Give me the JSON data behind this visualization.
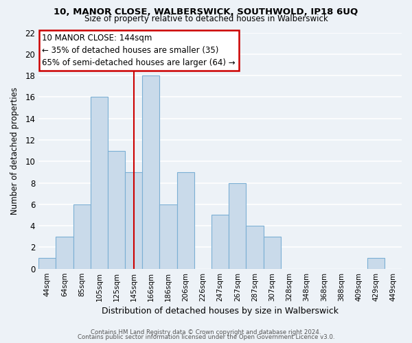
{
  "title": "10, MANOR CLOSE, WALBERSWICK, SOUTHWOLD, IP18 6UQ",
  "subtitle": "Size of property relative to detached houses in Walberswick",
  "xlabel": "Distribution of detached houses by size in Walberswick",
  "ylabel": "Number of detached properties",
  "bin_labels": [
    "44sqm",
    "64sqm",
    "85sqm",
    "105sqm",
    "125sqm",
    "145sqm",
    "166sqm",
    "186sqm",
    "206sqm",
    "226sqm",
    "247sqm",
    "267sqm",
    "287sqm",
    "307sqm",
    "328sqm",
    "348sqm",
    "368sqm",
    "388sqm",
    "409sqm",
    "429sqm",
    "449sqm"
  ],
  "bin_counts": [
    1,
    3,
    6,
    16,
    11,
    9,
    18,
    6,
    9,
    0,
    5,
    8,
    4,
    3,
    0,
    0,
    0,
    0,
    0,
    1,
    0
  ],
  "bar_color": "#c9daea",
  "bar_edge_color": "#7bafd4",
  "vline_x_index": 5,
  "vline_color": "#cc0000",
  "annotation_title": "10 MANOR CLOSE: 144sqm",
  "annotation_line1": "← 35% of detached houses are smaller (35)",
  "annotation_line2": "65% of semi-detached houses are larger (64) →",
  "ylim": [
    0,
    22
  ],
  "yticks": [
    0,
    2,
    4,
    6,
    8,
    10,
    12,
    14,
    16,
    18,
    20,
    22
  ],
  "footer_line1": "Contains HM Land Registry data © Crown copyright and database right 2024.",
  "footer_line2": "Contains public sector information licensed under the Open Government Licence v3.0.",
  "background_color": "#edf2f7",
  "grid_color": "#ffffff",
  "grid_linewidth": 1.2
}
